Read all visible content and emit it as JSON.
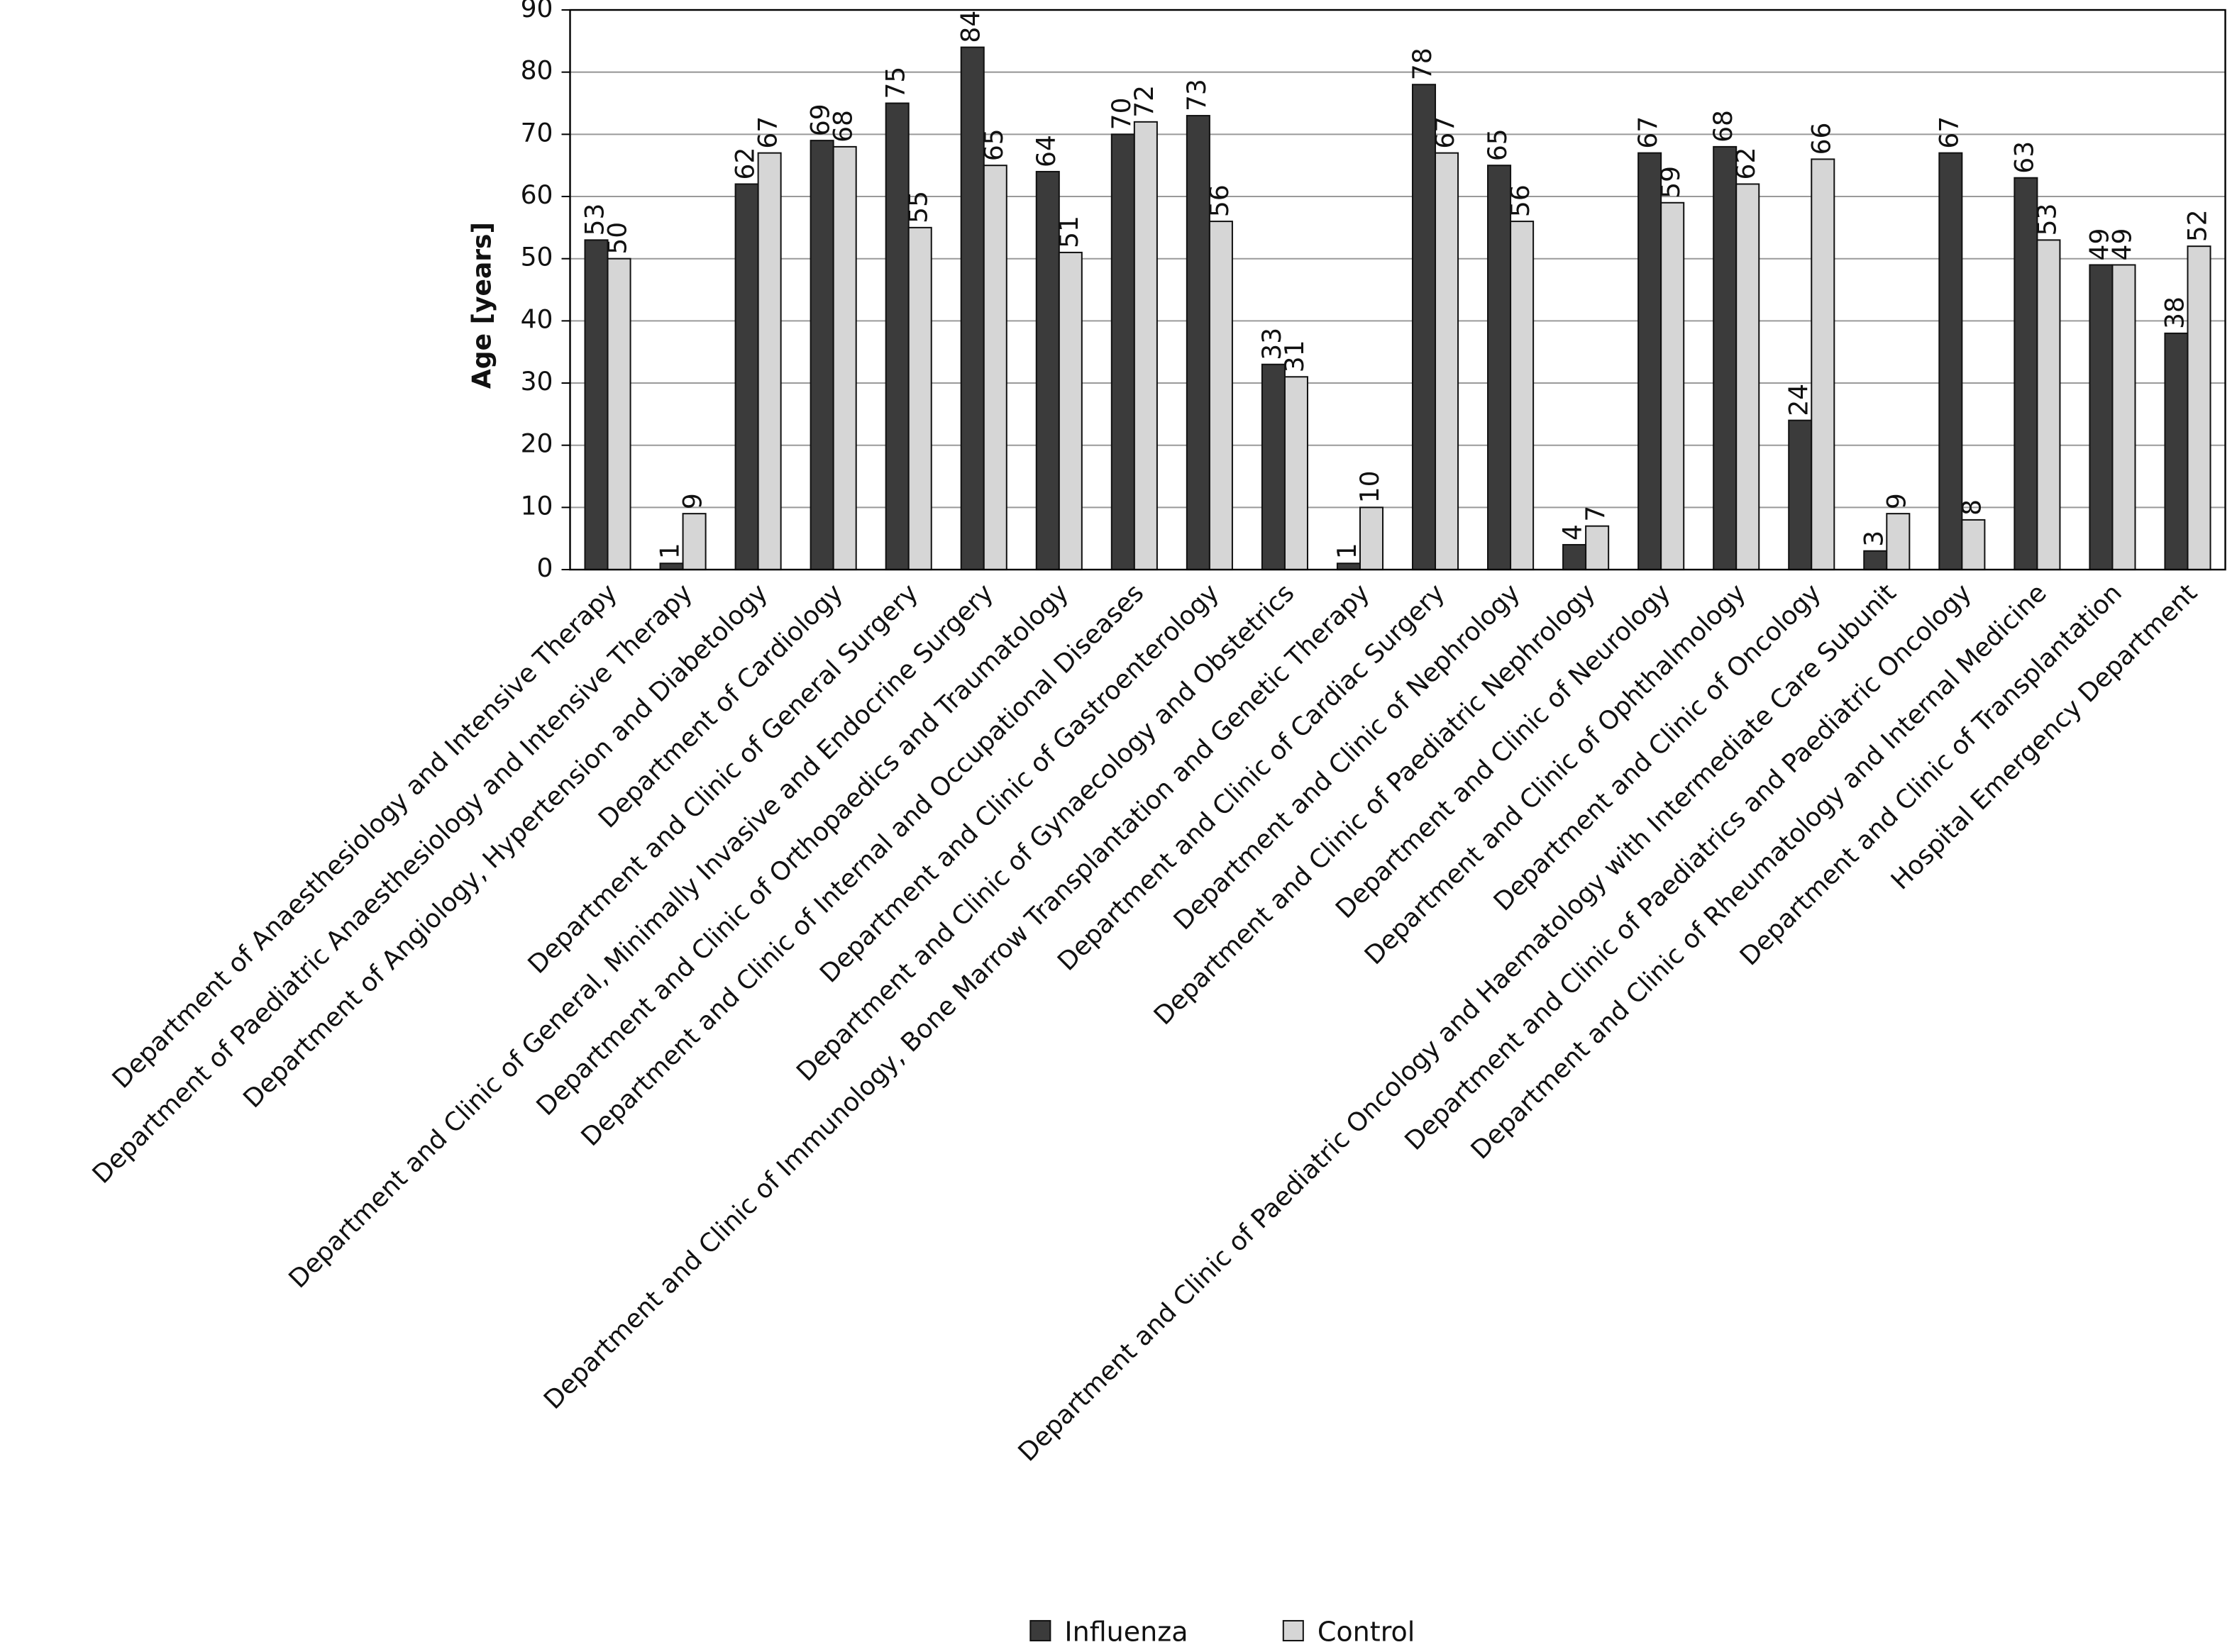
{
  "chart_data": {
    "type": "bar",
    "ylabel": "Age [years]",
    "categories": [
      "Department of Anaesthesiology and Intensive Therapy",
      "Department of Paediatric Anaesthesiology and Intensive Therapy",
      "Department of Angiology, Hypertension and Diabetology",
      "Department of Cardiology",
      "Department and Clinic of General Surgery",
      "Department and Clinic of General, Minimally Invasive and Endocrine Surgery",
      "Department and Clinic of Orthopaedics and Traumatology",
      "Department and Clinic of Internal and Occupational Diseases",
      "Department and Clinic of Gastroenterology",
      "Department and Clinic of Gynaecology and Obstetrics",
      "Department and Clinic of Immunology, Bone Marrow Transplantation and Genetic Therapy",
      "Department and Clinic of Cardiac Surgery",
      "Department and Clinic of Nephrology",
      "Department and Clinic of Paediatric Nephrology",
      "Department and Clinic of Neurology",
      "Department and Clinic of Ophthalmology",
      "Department and Clinic of Oncology",
      "Department and Clinic of Paediatric Oncology and Haematology with Intermediate Care Subunit",
      "Department and Clinic of Paediatrics and Paediatric Oncology",
      "Department and Clinic of Rheumatology and Internal Medicine",
      "Department and Clinic of Transplantation",
      "Hospital Emergency Department"
    ],
    "series": [
      {
        "name": "Influenza",
        "color": "#3b3b3b",
        "values": [
          53,
          1,
          62,
          69,
          75,
          84,
          64,
          70,
          73,
          33,
          1,
          78,
          65,
          4,
          67,
          68,
          24,
          3,
          67,
          63,
          49,
          38
        ]
      },
      {
        "name": "Control",
        "color": "#d6d6d6",
        "values": [
          50,
          9,
          67,
          68,
          55,
          65,
          51,
          72,
          56,
          31,
          10,
          67,
          56,
          7,
          59,
          62,
          66,
          9,
          8,
          53,
          49,
          52
        ]
      }
    ],
    "ylim": [
      0,
      90
    ],
    "yticks": [
      0,
      10,
      20,
      30,
      40,
      50,
      60,
      70,
      80,
      90
    ],
    "grid": true,
    "legend": "bottom"
  }
}
